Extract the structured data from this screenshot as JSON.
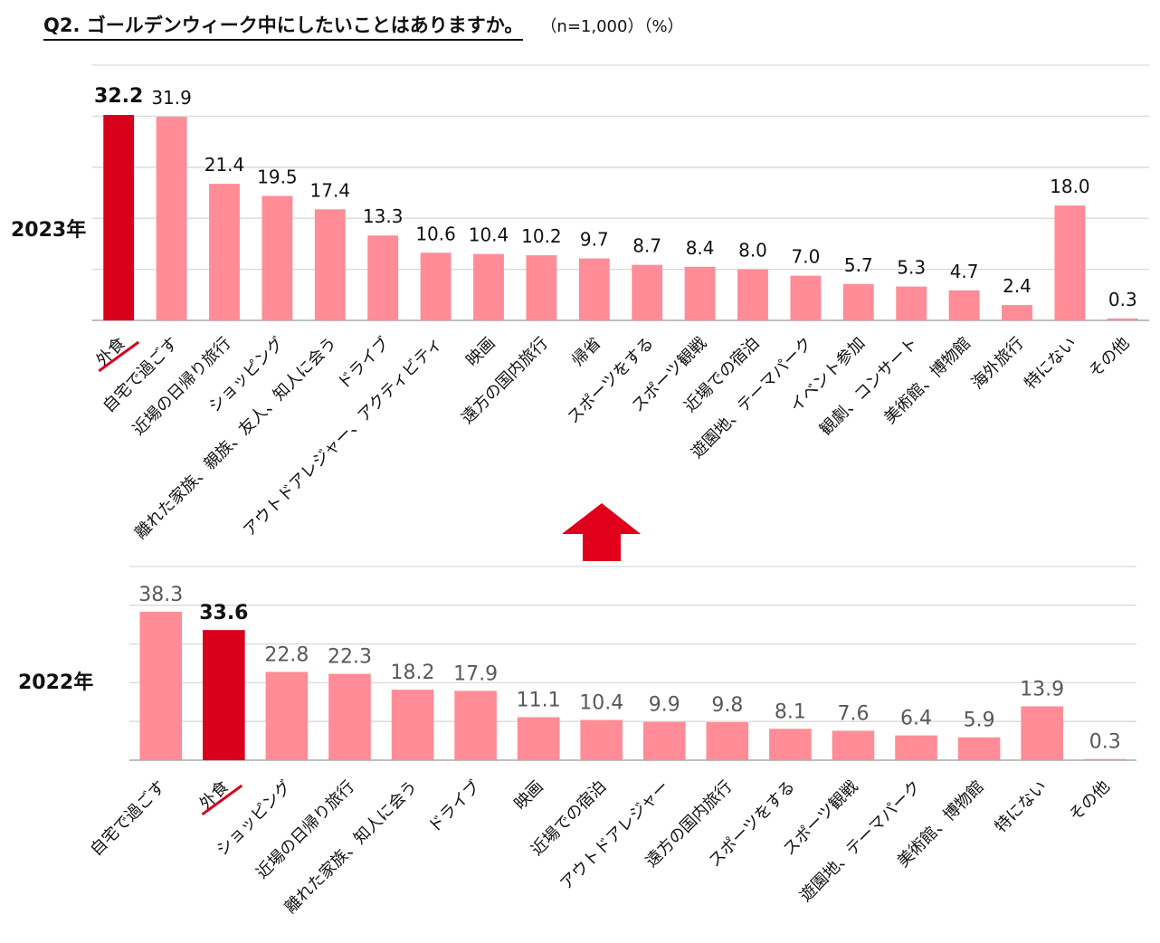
{
  "header": {
    "title": "Q2. ゴールデンウィーク中にしたいことはありますか。",
    "note": "（n=1,000）（%）"
  },
  "colors": {
    "highlight": "#d9001b",
    "bar": "#ff8c96",
    "grid": "#d9d9d9",
    "axis": "#bfbfbf",
    "arrow": "#e0001b"
  },
  "chart_data": [
    {
      "type": "bar",
      "year_label": "2023年",
      "highlight": "外食",
      "categories": [
        "外食",
        "自宅で過ごす",
        "近場の日帰り旅行",
        "ショッピング",
        "離れた家族、親族、友人、知人に会う",
        "ドライブ",
        "アウトドアレジャー、アクティビティ",
        "映画",
        "遠方の国内旅行",
        "帰省",
        "スポーツをする",
        "スポーツ観戦",
        "近場での宿泊",
        "遊園地、テーマパーク",
        "イベント参加",
        "観劇、コンサート",
        "美術館、博物館",
        "海外旅行",
        "特にない",
        "その他"
      ],
      "values": [
        32.2,
        31.9,
        21.4,
        19.5,
        17.4,
        13.3,
        10.6,
        10.4,
        10.2,
        9.7,
        8.7,
        8.4,
        8.0,
        7.0,
        5.7,
        5.3,
        4.7,
        2.4,
        18.0,
        0.3
      ],
      "value_labels": [
        "32.2",
        "31.9",
        "21.4",
        "19.5",
        "17.4",
        "13.3",
        "10.6",
        "10.4",
        "10.2",
        "9.7",
        "8.7",
        "8.4",
        "8.0",
        "7.0",
        "5.7",
        "5.3",
        "4.7",
        "2.4",
        "18.0",
        "0.3"
      ],
      "ylim": [
        0,
        40
      ]
    },
    {
      "type": "bar",
      "year_label": "2022年",
      "highlight": "外食",
      "categories": [
        "自宅で過ごす",
        "外食",
        "ショッピング",
        "近場の日帰り旅行",
        "離れた家族、知人に会う",
        "ドライブ",
        "映画",
        "近場での宿泊",
        "アウトドアレジャー",
        "遠方の国内旅行",
        "スポーツをする",
        "スポーツ観戦",
        "遊園地、テーマパーク",
        "美術館、博物館",
        "特にない",
        "その他"
      ],
      "values": [
        38.3,
        33.6,
        22.8,
        22.3,
        18.2,
        17.9,
        11.1,
        10.4,
        9.9,
        9.8,
        8.1,
        7.6,
        6.4,
        5.9,
        13.9,
        0.3
      ],
      "value_labels": [
        "38.3",
        "33.6",
        "22.8",
        "22.3",
        "18.2",
        "17.9",
        "11.1",
        "10.4",
        "9.9",
        "9.8",
        "8.1",
        "7.6",
        "6.4",
        "5.9",
        "13.9",
        "0.3"
      ],
      "ylim": [
        0,
        50
      ]
    }
  ]
}
